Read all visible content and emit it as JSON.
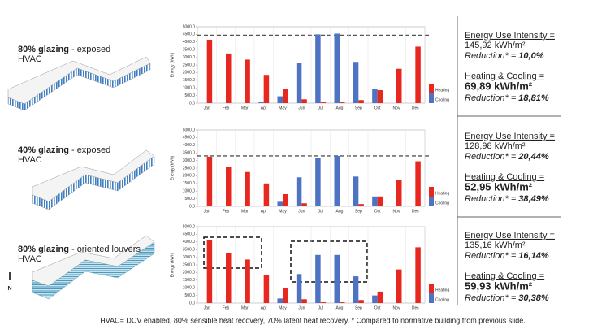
{
  "chart_data": [
    {
      "type": "bar",
      "y_label": "Energy (kWh)",
      "categories": [
        "Jan",
        "Feb",
        "Mar",
        "Apr",
        "May",
        "Jun",
        "Jul",
        "Aug",
        "Sep",
        "Oct",
        "Nov",
        "Dec"
      ],
      "series": [
        {
          "name": "Cooling",
          "color": "#4f73c3",
          "values": [
            0,
            0,
            0,
            50,
            450,
            2650,
            4500,
            4550,
            2700,
            950,
            0,
            0
          ]
        },
        {
          "name": "Heating",
          "color": "#e8281e",
          "values": [
            4150,
            3250,
            2850,
            1850,
            950,
            250,
            50,
            50,
            200,
            850,
            2250,
            3700
          ]
        }
      ],
      "ylim": [
        0,
        5000
      ],
      "yticks": [
        {
          "value": 0,
          "label": "0.0"
        },
        {
          "value": 500,
          "label": "500.0"
        },
        {
          "value": 1000,
          "label": "1000.0"
        },
        {
          "value": 1500,
          "label": "1500.0"
        },
        {
          "value": 2000,
          "label": "2000.0"
        },
        {
          "value": 2500,
          "label": "2500.0"
        },
        {
          "value": 3000,
          "label": "3000.0"
        },
        {
          "value": 3500,
          "label": "3500.0"
        },
        {
          "value": 4000,
          "label": "4000.0"
        },
        {
          "value": 4500,
          "label": "4500.0"
        },
        {
          "value": 5000,
          "label": "5000.0"
        }
      ],
      "reference_line": 4450
    },
    {
      "type": "bar",
      "y_label": "Energy (kWh)",
      "categories": [
        "Jan",
        "Feb",
        "Mar",
        "Apr",
        "May",
        "Jun",
        "Jul",
        "Aug",
        "Sep",
        "Oct",
        "Nov",
        "Dec"
      ],
      "series": [
        {
          "name": "Cooling",
          "color": "#4f73c3",
          "values": [
            0,
            0,
            0,
            0,
            300,
            1900,
            3150,
            3300,
            1950,
            650,
            0,
            0
          ]
        },
        {
          "name": "Heating",
          "color": "#e8281e",
          "values": [
            3250,
            2600,
            2250,
            1500,
            800,
            200,
            50,
            50,
            150,
            650,
            1750,
            2950
          ]
        }
      ],
      "ylim": [
        0,
        5000
      ],
      "yticks": [
        {
          "value": 0,
          "label": "0.0"
        },
        {
          "value": 500,
          "label": "500.0"
        },
        {
          "value": 1000,
          "label": "1000.0"
        },
        {
          "value": 1500,
          "label": "1500.0"
        },
        {
          "value": 2000,
          "label": "2000.0"
        },
        {
          "value": 2500,
          "label": "2500.0"
        },
        {
          "value": 3000,
          "label": "3000.0"
        },
        {
          "value": 3500,
          "label": "3500.0"
        },
        {
          "value": 4000,
          "label": "4000.0"
        },
        {
          "value": 4500,
          "label": "4500.0"
        },
        {
          "value": 5000,
          "label": "5000.0"
        }
      ],
      "reference_line": 3300
    },
    {
      "type": "bar",
      "y_label": "Energy (kWh)",
      "categories": [
        "Jan",
        "Feb",
        "Mar",
        "Apr",
        "May",
        "Jun",
        "Jul",
        "Aug",
        "Sep",
        "Oct",
        "Nov",
        "Dec"
      ],
      "series": [
        {
          "name": "Cooling",
          "color": "#4f73c3",
          "values": [
            0,
            0,
            0,
            0,
            300,
            1900,
            3150,
            3150,
            1750,
            500,
            0,
            0
          ]
        },
        {
          "name": "Heating",
          "color": "#e8281e",
          "values": [
            4150,
            3250,
            2850,
            1850,
            1000,
            250,
            50,
            50,
            200,
            750,
            2200,
            3650
          ]
        }
      ],
      "ylim": [
        0,
        5000
      ],
      "yticks": [
        {
          "value": 0,
          "label": "0.0"
        },
        {
          "value": 500,
          "label": "500.0"
        },
        {
          "value": 1000,
          "label": "1000.0"
        },
        {
          "value": 1500,
          "label": "1500.0"
        },
        {
          "value": 2000,
          "label": "2000.0"
        },
        {
          "value": 2500,
          "label": "2500.0"
        },
        {
          "value": 3000,
          "label": "3000.0"
        },
        {
          "value": 3500,
          "label": "3500.0"
        },
        {
          "value": 4000,
          "label": "4000.0"
        },
        {
          "value": 4500,
          "label": "4500.0"
        },
        {
          "value": 5000,
          "label": "5000.0"
        }
      ]
    }
  ],
  "panels": [
    {
      "title_bold": "80% glazing",
      "title_rest": "- exposed",
      "subtitle": "HVAC",
      "eui_label": "Energy Use Intensity =",
      "eui_value": "145,92 kWh/m²",
      "reduction_label": "Reduction* =",
      "eui_reduction": "10,0%",
      "hc_label": "Heating & Cooling =",
      "hc_value": "69,89 kWh/m²",
      "hc_reduction": "18,81%"
    },
    {
      "title_bold": "40% glazing",
      "title_rest": "- exposed",
      "subtitle": "HVAC",
      "eui_label": "Energy Use Intensity =",
      "eui_value": "128,98 kWh/m²",
      "reduction_label": "Reduction* =",
      "eui_reduction": "20,44%",
      "hc_label": "Heating & Cooling =",
      "hc_value": "52,95 kWh/m²",
      "hc_reduction": "38,49%"
    },
    {
      "title_bold": "80% glazing",
      "title_rest": "- oriented louvers",
      "subtitle": "HVAC",
      "eui_label": "Energy Use Intensity =",
      "eui_value": "135,16 kWh/m²",
      "reduction_label": "Reduction* =",
      "eui_reduction": "16,14%",
      "hc_label": "Heating & Cooling =",
      "hc_value": "59,93 kWh/m²",
      "hc_reduction": "30,38%"
    }
  ],
  "north_label": "N",
  "footnote": "HVAC= DCV enabled, 80% sensible heat recovery, 70% latent heat recovery. * Compared to normative building from previous slide."
}
